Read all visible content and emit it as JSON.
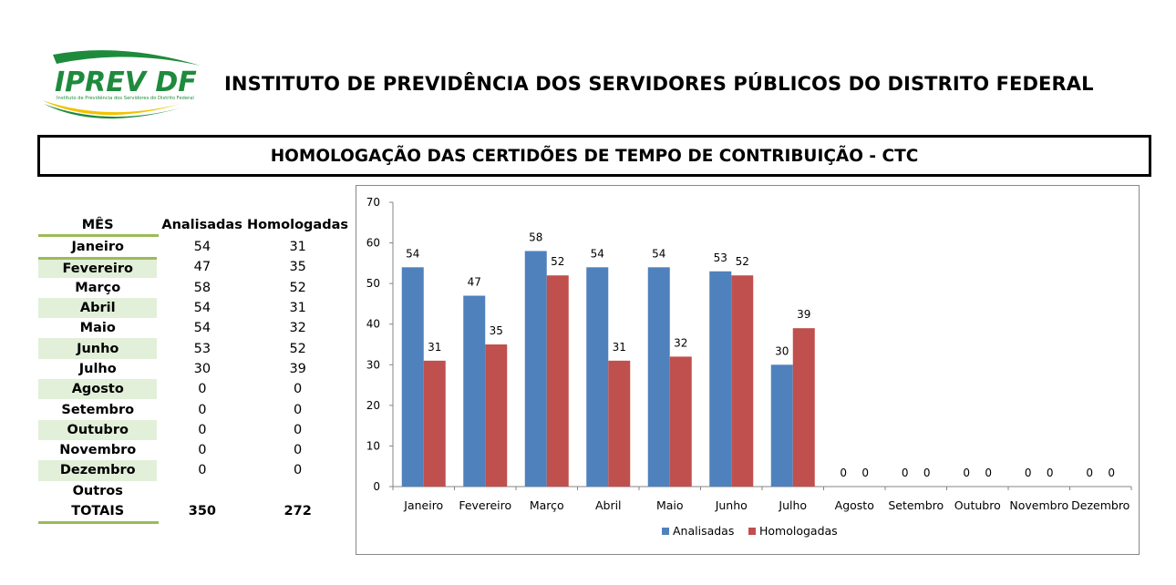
{
  "header": {
    "logo_text": "IPREV DF",
    "logo_subtext": "Instituto de Previdência dos Servidores do Distrito Federal",
    "org_title": "INSTITUTO DE PREVIDÊNCIA DOS SERVIDORES PÚBLICOS DO DISTRITO FEDERAL",
    "report_title": "HOMOLOGAÇÃO DAS CERTIDÕES DE TEMPO DE CONTRIBUIÇÃO - CTC"
  },
  "colors": {
    "analisadas": "#4f81bd",
    "homologadas": "#c0504d",
    "table_shade": "#e2efd9",
    "table_rule": "#9bbb59",
    "logo_green": "#1e8b3c",
    "logo_yellow": "#f2c200"
  },
  "table": {
    "headers": [
      "MÊS",
      "Analisadas",
      "Homologadas"
    ],
    "rows": [
      {
        "mes": "Janeiro",
        "analisadas": "54",
        "homologadas": "31"
      },
      {
        "mes": "Fevereiro",
        "analisadas": "47",
        "homologadas": "35"
      },
      {
        "mes": "Março",
        "analisadas": "58",
        "homologadas": "52"
      },
      {
        "mes": "Abril",
        "analisadas": "54",
        "homologadas": "31"
      },
      {
        "mes": "Maio",
        "analisadas": "54",
        "homologadas": "32"
      },
      {
        "mes": "Junho",
        "analisadas": "53",
        "homologadas": "52"
      },
      {
        "mes": "Julho",
        "analisadas": "30",
        "homologadas": "39"
      },
      {
        "mes": "Agosto",
        "analisadas": "0",
        "homologadas": "0"
      },
      {
        "mes": "Setembro",
        "analisadas": "0",
        "homologadas": "0"
      },
      {
        "mes": "Outubro",
        "analisadas": "0",
        "homologadas": "0"
      },
      {
        "mes": "Novembro",
        "analisadas": "0",
        "homologadas": "0"
      },
      {
        "mes": "Dezembro",
        "analisadas": "0",
        "homologadas": "0"
      },
      {
        "mes": "Outros",
        "analisadas": "",
        "homologadas": ""
      }
    ],
    "totals": {
      "label": "TOTAIS",
      "analisadas": "350",
      "homologadas": "272"
    }
  },
  "chart_data": {
    "type": "bar",
    "categories": [
      "Janeiro",
      "Fevereiro",
      "Março",
      "Abril",
      "Maio",
      "Junho",
      "Julho",
      "Agosto",
      "Setembro",
      "Outubro",
      "Novembro",
      "Dezembro"
    ],
    "series": [
      {
        "name": "Analisadas",
        "values": [
          54,
          47,
          58,
          54,
          54,
          53,
          30,
          0,
          0,
          0,
          0,
          0
        ]
      },
      {
        "name": "Homologadas",
        "values": [
          31,
          35,
          52,
          31,
          32,
          52,
          39,
          0,
          0,
          0,
          0,
          0
        ]
      }
    ],
    "ylim": [
      0,
      70
    ],
    "yticks": [
      0,
      10,
      20,
      30,
      40,
      50,
      60,
      70
    ],
    "grid": false,
    "legend": "bottom",
    "data_labels": true
  }
}
